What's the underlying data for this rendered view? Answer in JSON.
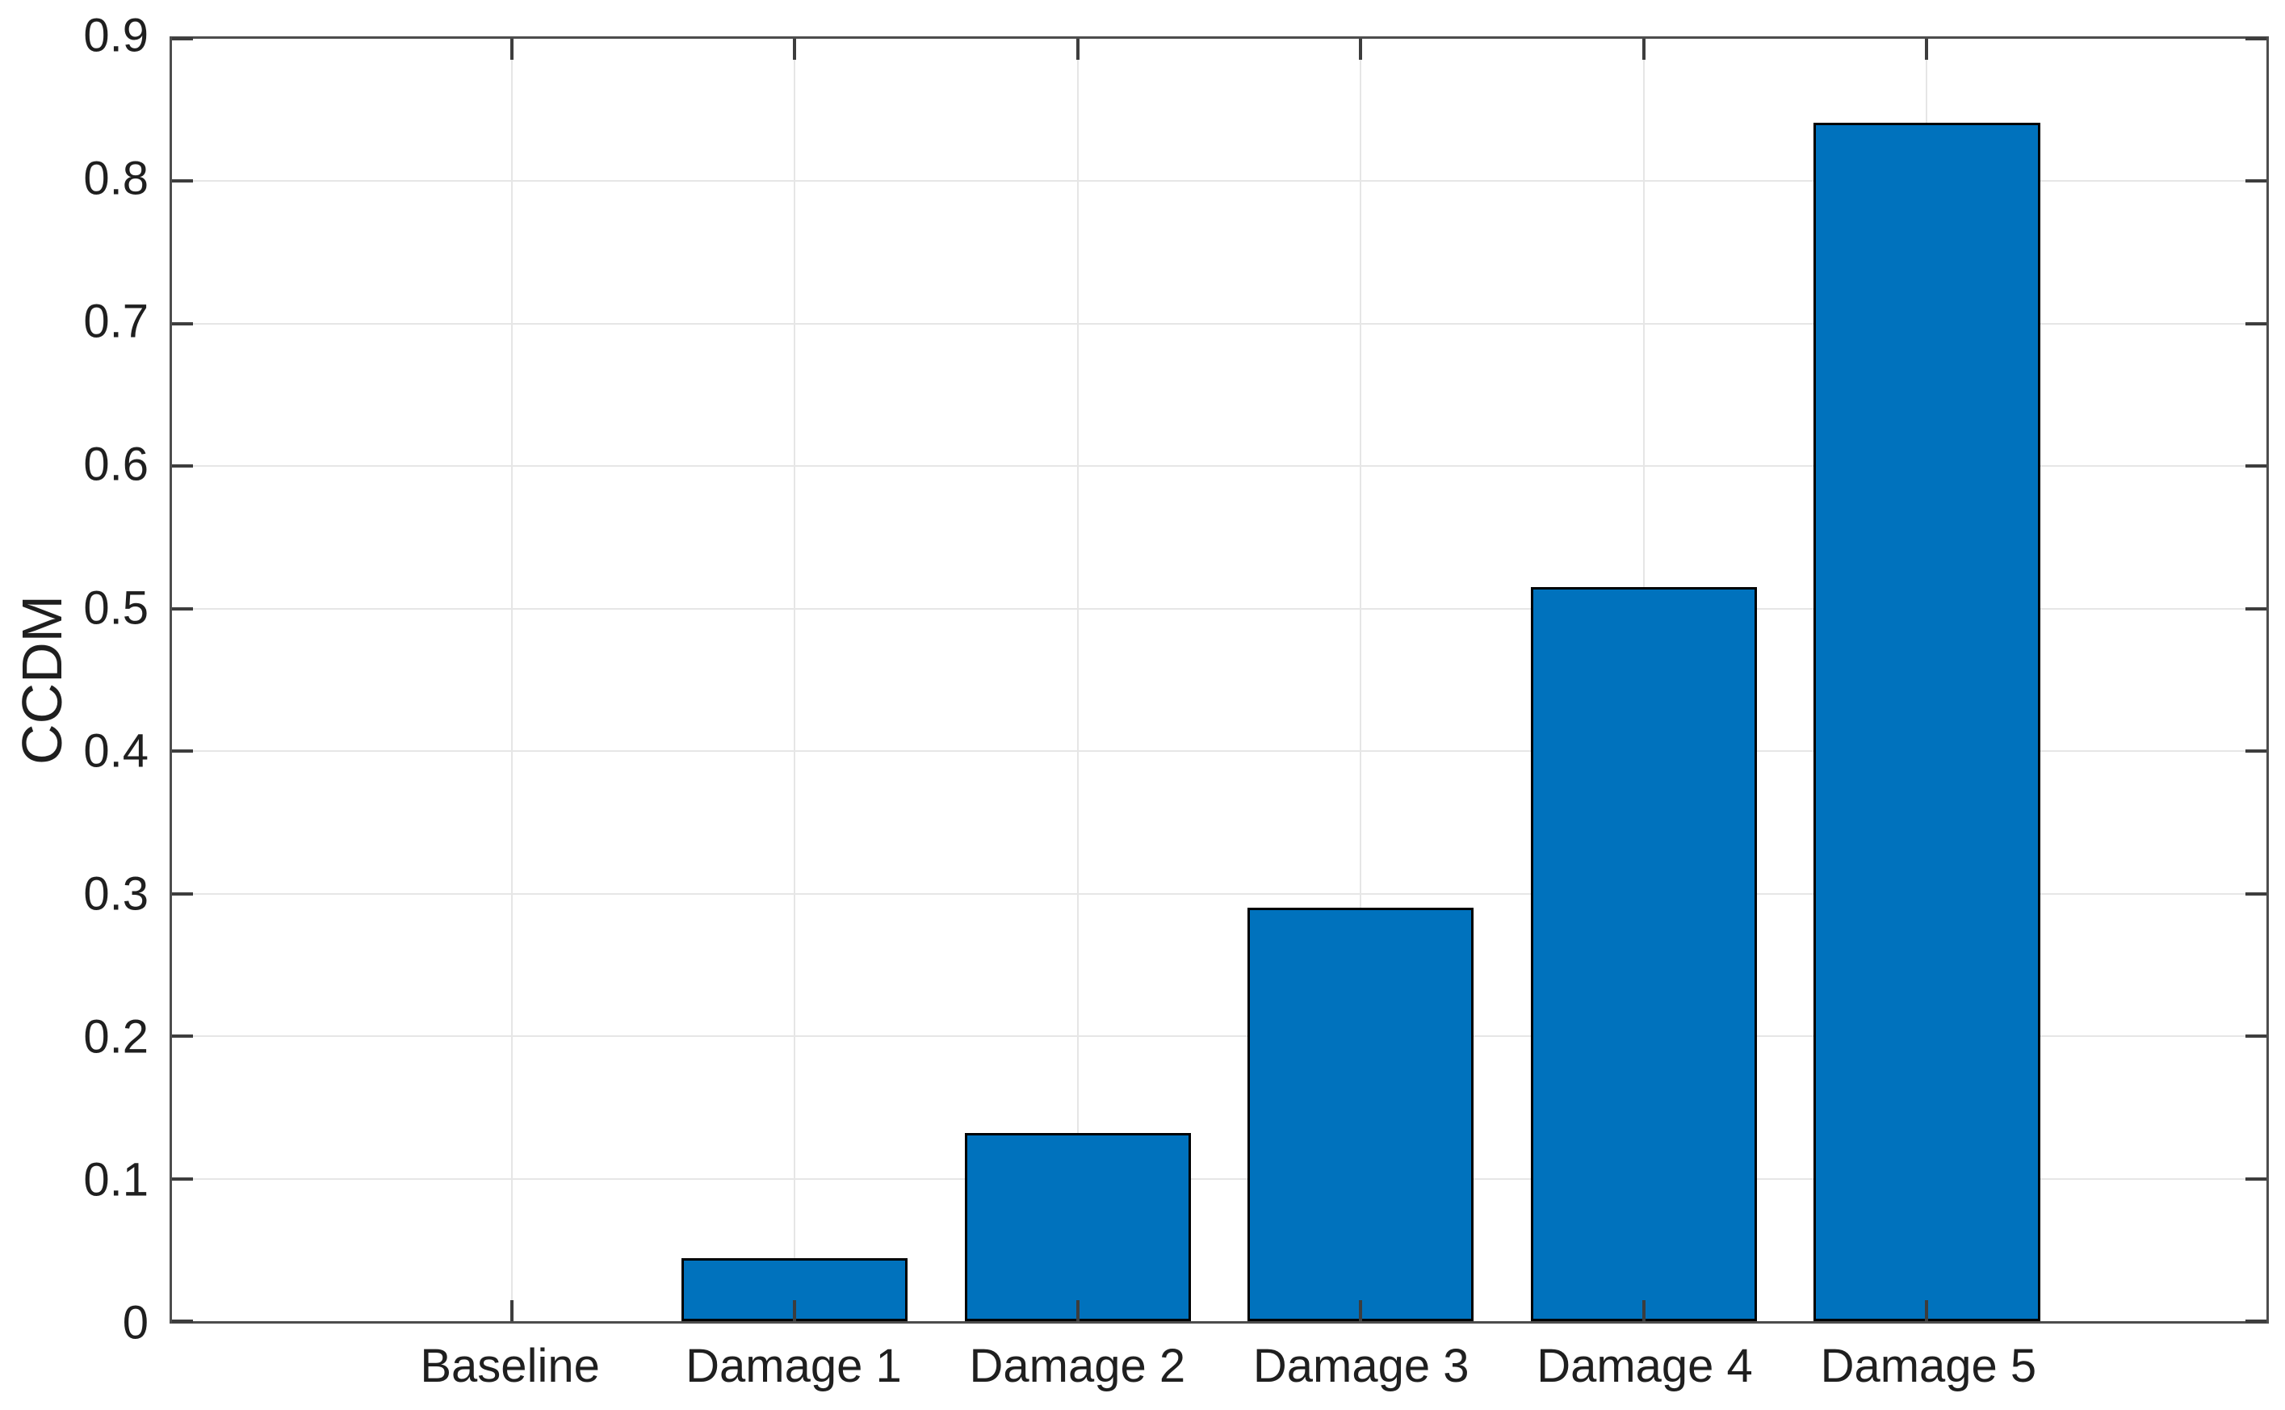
{
  "figure": {
    "background": "#ffffff"
  },
  "chart_data": {
    "type": "bar",
    "ylabel": "CCDM",
    "categories": [
      "Baseline",
      "Damage 1",
      "Damage 2",
      "Damage 3",
      "Damage 4",
      "Damage 5"
    ],
    "values": [
      0,
      0.044,
      0.132,
      0.29,
      0.515,
      0.841
    ],
    "ylim": [
      0,
      0.9
    ],
    "yticks": [
      {
        "value": 0.0,
        "label": "0"
      },
      {
        "value": 0.1,
        "label": "0.1"
      },
      {
        "value": 0.2,
        "label": "0.2"
      },
      {
        "value": 0.3,
        "label": "0.3"
      },
      {
        "value": 0.4,
        "label": "0.4"
      },
      {
        "value": 0.5,
        "label": "0.5"
      },
      {
        "value": 0.6,
        "label": "0.6"
      },
      {
        "value": 0.7,
        "label": "0.7"
      },
      {
        "value": 0.8,
        "label": "0.8"
      },
      {
        "value": 0.9,
        "label": "0.9"
      }
    ],
    "grid": true,
    "colors": {
      "bar_fill": "#0072BD",
      "bar_edge": "#000000",
      "axis_box": "#4d4d4d",
      "tick_mark": "#3d3d3d",
      "grid_line": "#e6e6e6",
      "text": "#1f1f1f",
      "background": "#ffffff"
    },
    "layout": {
      "box": true,
      "tick_direction": "in",
      "legend": "none",
      "bar_width_units": 0.8,
      "x_edge_margin_units": 1.2
    }
  }
}
